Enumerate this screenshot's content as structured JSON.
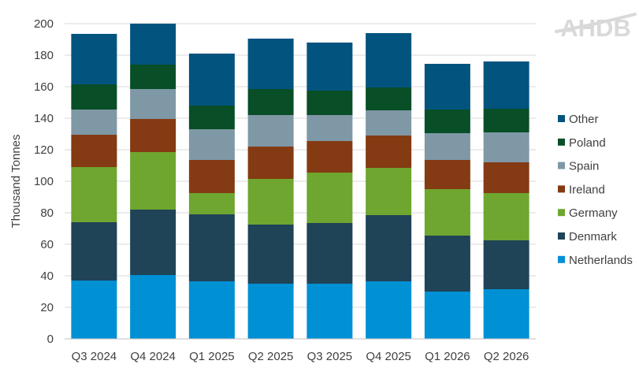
{
  "chart_data": {
    "type": "bar",
    "stacked": true,
    "categories": [
      "Q3 2024",
      "Q4 2024",
      "Q1 2025",
      "Q2 2025",
      "Q3 2025",
      "Q4 2025",
      "Q1 2026",
      "Q2 2026"
    ],
    "series": [
      {
        "name": "Netherlands",
        "color": "#0090d4",
        "values": [
          37,
          40.5,
          36.5,
          35,
          35,
          36.5,
          30,
          31.5
        ]
      },
      {
        "name": "Denmark",
        "color": "#1f4357",
        "values": [
          37,
          41.5,
          42.5,
          37.5,
          38.5,
          42,
          35.5,
          31
        ]
      },
      {
        "name": "Germany",
        "color": "#6ea62f",
        "values": [
          35,
          36.5,
          13.5,
          29,
          32,
          30,
          29.5,
          30
        ]
      },
      {
        "name": "Ireland",
        "color": "#843a12",
        "values": [
          20.5,
          21,
          21,
          20.5,
          20,
          20.5,
          18.5,
          19.5
        ]
      },
      {
        "name": "Spain",
        "color": "#7f98a6",
        "values": [
          16,
          19,
          19.5,
          20,
          16.5,
          16,
          17,
          19
        ]
      },
      {
        "name": "Poland",
        "color": "#084e26",
        "values": [
          16,
          15.5,
          15,
          16.5,
          15.5,
          14.5,
          15,
          15
        ]
      },
      {
        "name": "Other",
        "color": "#03537f",
        "values": [
          32,
          26,
          33,
          32,
          30.5,
          34.5,
          29,
          30
        ]
      }
    ],
    "ylabel": "Thousand Tonnes",
    "xlabel": "",
    "ylim": [
      0,
      200
    ],
    "yticks": [
      "0",
      "20",
      "40",
      "60",
      "80",
      "100",
      "120",
      "140",
      "160",
      "180",
      "200"
    ],
    "grid": true,
    "legend_position": "right",
    "logo_text": "AHDB"
  }
}
